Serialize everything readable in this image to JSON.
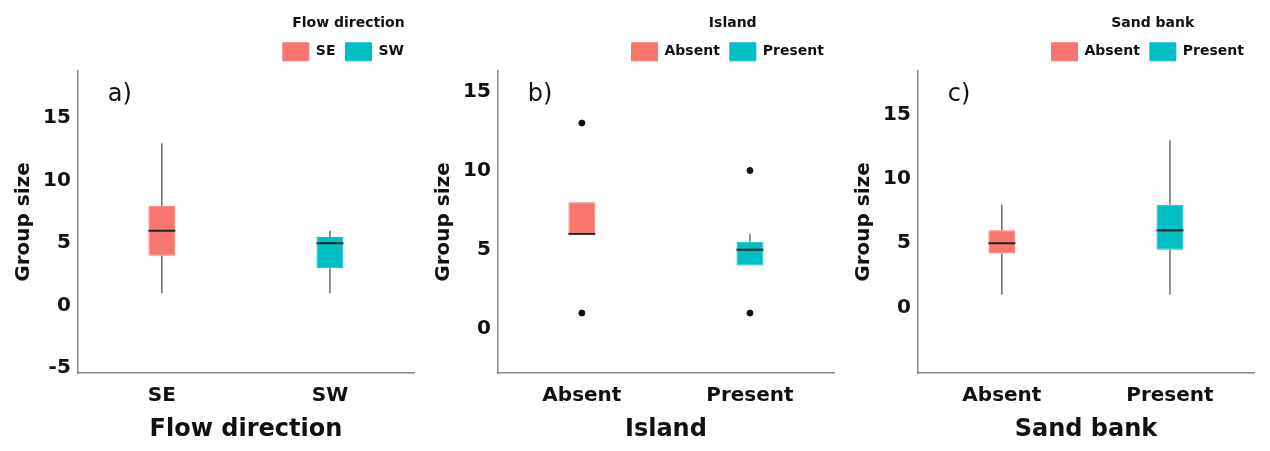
{
  "chart_data": [
    {
      "type": "box",
      "categories": [
        "SE",
        "SW"
      ],
      "xlabel": "Flow direction",
      "ylabel": "Group size",
      "legend_title": "Flow direction",
      "legend": "top right",
      "annotations": [
        "a)"
      ],
      "ylim": [
        -5.4,
        18.8
      ],
      "yticks": [
        -5,
        0,
        5,
        10,
        15
      ],
      "series": [
        {
          "name": "SE",
          "color": "#f8766d",
          "boxes": [
            {
              "low": 1,
              "q1": 4,
              "median": 6,
              "q3": 8,
              "high": 13
            },
            null
          ]
        },
        {
          "name": "SW",
          "color": "#00bfc4",
          "boxes": [
            null,
            {
              "low": 1,
              "q1": 3,
              "median": 5,
              "q3": 5.5,
              "high": 6
            }
          ]
        }
      ]
    },
    {
      "type": "box",
      "categories": [
        "Absent",
        "Present"
      ],
      "xlabel": "Island",
      "ylabel": "Group size",
      "legend_title": "Island",
      "legend": "top right",
      "annotations": [
        "b)"
      ],
      "ylim": [
        -2.8,
        16.3
      ],
      "yticks": [
        0,
        5,
        10,
        15
      ],
      "series": [
        {
          "name": "Absent",
          "color": "#f8766d",
          "boxes": [
            {
              "low": 6,
              "q1": 6,
              "median": 6,
              "q3": 8,
              "high": 8,
              "outliers": [
                1,
                13
              ]
            },
            null
          ]
        },
        {
          "name": "Present",
          "color": "#00bfc4",
          "boxes": [
            null,
            {
              "low": 4,
              "q1": 4,
              "median": 5,
              "q3": 5.5,
              "high": 6,
              "outliers": [
                1,
                10
              ]
            }
          ]
        }
      ]
    },
    {
      "type": "box",
      "categories": [
        "Absent",
        "Present"
      ],
      "xlabel": "Sand bank",
      "ylabel": "Group size",
      "legend_title": "Sand bank",
      "legend": "top right",
      "annotations": [
        "c)"
      ],
      "ylim": [
        -5.1,
        18.4
      ],
      "yticks": [
        0,
        5,
        10,
        15
      ],
      "series": [
        {
          "name": "Absent",
          "color": "#f8766d",
          "boxes": [
            {
              "low": 1,
              "q1": 4.2,
              "median": 5,
              "q3": 6,
              "high": 8
            },
            null
          ]
        },
        {
          "name": "Present",
          "color": "#00bfc4",
          "boxes": [
            null,
            {
              "low": 1,
              "q1": 4.5,
              "median": 6,
              "q3": 8,
              "high": 13
            }
          ]
        }
      ]
    }
  ]
}
